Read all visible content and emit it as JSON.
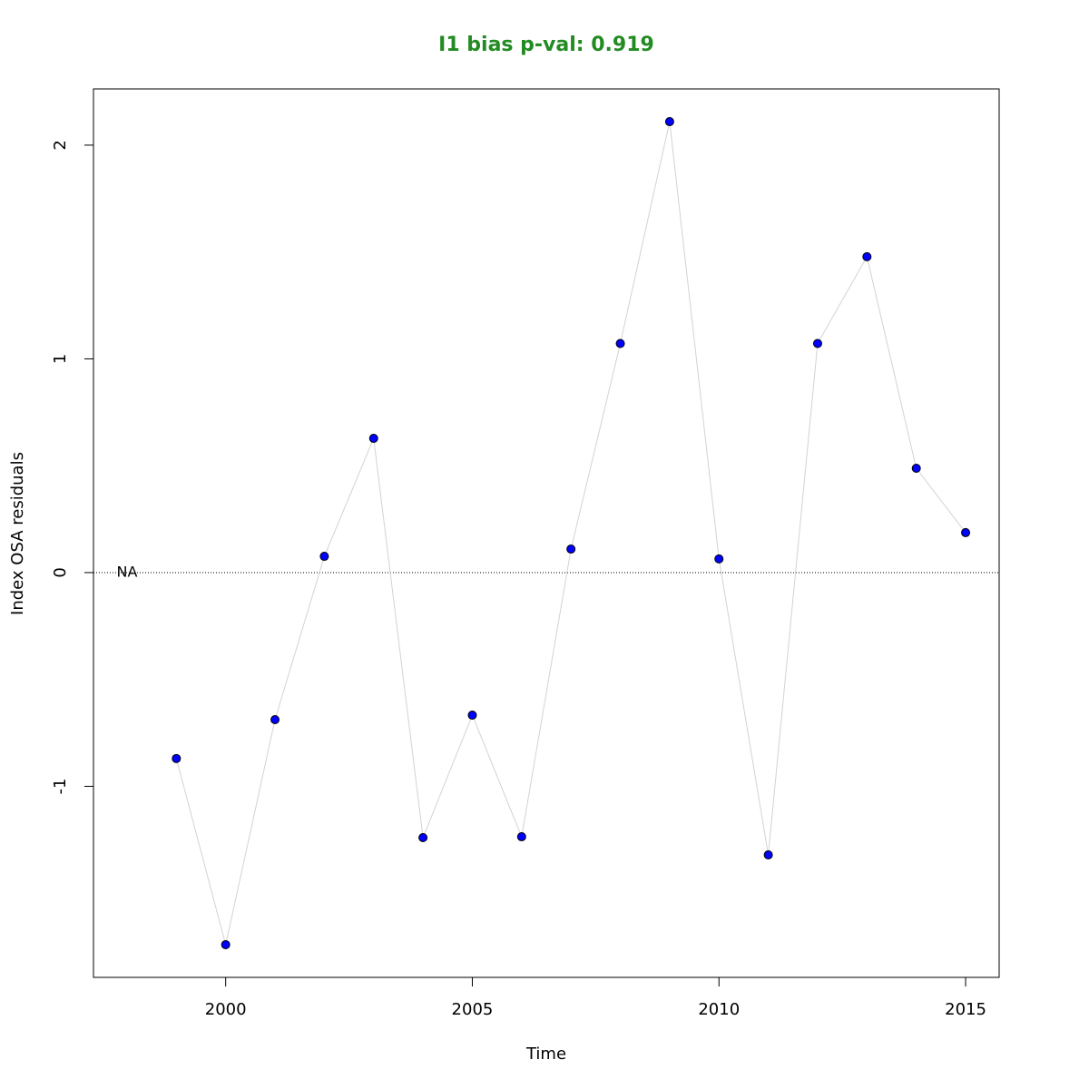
{
  "chart_data": {
    "type": "line",
    "title": "I1 bias p-val: 0.919",
    "title_color": "#228b22",
    "xlabel": "Time",
    "ylabel": "Index OSA residuals",
    "x": [
      1998,
      1999,
      2000,
      2001,
      2002,
      2003,
      2004,
      2005,
      2006,
      2007,
      2008,
      2009,
      2010,
      2011,
      2012,
      2013,
      2014,
      2015
    ],
    "series": [
      {
        "name": "I1",
        "color": "#0000ff",
        "line_color": "#d3d3d3",
        "values": [
          null,
          -0.87,
          -1.741,
          -0.688,
          0.076,
          0.628,
          -1.24,
          -0.667,
          -1.236,
          0.11,
          1.072,
          2.11,
          0.064,
          -1.321,
          1.072,
          1.478,
          0.488,
          0.187
        ]
      }
    ],
    "annotations": [
      {
        "text": "NA",
        "x": 1998,
        "y": 0
      }
    ],
    "hline": 0,
    "xlim": [
      1997.32,
      2015.68
    ],
    "ylim": [
      -1.894,
      2.263
    ],
    "xticks": [
      2000,
      2005,
      2010,
      2015
    ],
    "yticks": [
      -1,
      0,
      1,
      2
    ],
    "grid": false
  }
}
